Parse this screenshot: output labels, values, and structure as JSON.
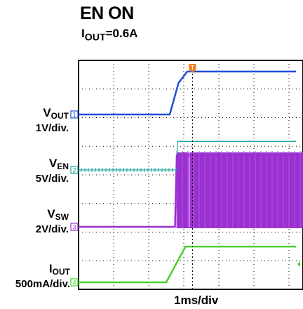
{
  "chart_data": {
    "type": "line",
    "title": "EN ON",
    "subtitle": {
      "main": "I",
      "sub": "OUT",
      "tail": "=0.6A"
    },
    "xlabel": "1ms/div",
    "time_per_div_ms": 1,
    "grid": true,
    "trigger_marker": "T",
    "trigger_time_ms": 1.75,
    "channels": [
      {
        "id": "1",
        "label_main": "V",
        "label_sub": "OUT",
        "scale": "1V/div.",
        "color": "#1f4fd8",
        "x_ms": [
          -1.5,
          1.1,
          1.35,
          1.6,
          4.7
        ],
        "y_div": [
          0,
          0,
          1.1,
          1.5,
          1.5
        ]
      },
      {
        "id": "2",
        "label_main": "V",
        "label_sub": "EN",
        "scale": "5V/div.",
        "color": "#20a8a0",
        "x_ms": [
          -1.5,
          1.3,
          1.32,
          4.7
        ],
        "y_div": [
          0,
          0,
          1.0,
          1.0
        ]
      },
      {
        "id": "3",
        "label_main": "V",
        "label_sub": "SW",
        "scale": "2V/div.",
        "color": "#9b30d0",
        "x_ms": [
          -1.5,
          1.25,
          1.3,
          4.7
        ],
        "y_div": [
          0,
          0,
          2.5,
          2.5
        ],
        "switching_band_div": [
          0,
          2.6
        ]
      },
      {
        "id": "4",
        "label_main": "I",
        "label_sub": "OUT",
        "scale": "500mA/div.",
        "color": "#4bd12a",
        "x_ms": [
          -1.5,
          1.0,
          1.55,
          4.7
        ],
        "y_div": [
          0,
          0,
          1.25,
          1.25
        ]
      }
    ]
  }
}
